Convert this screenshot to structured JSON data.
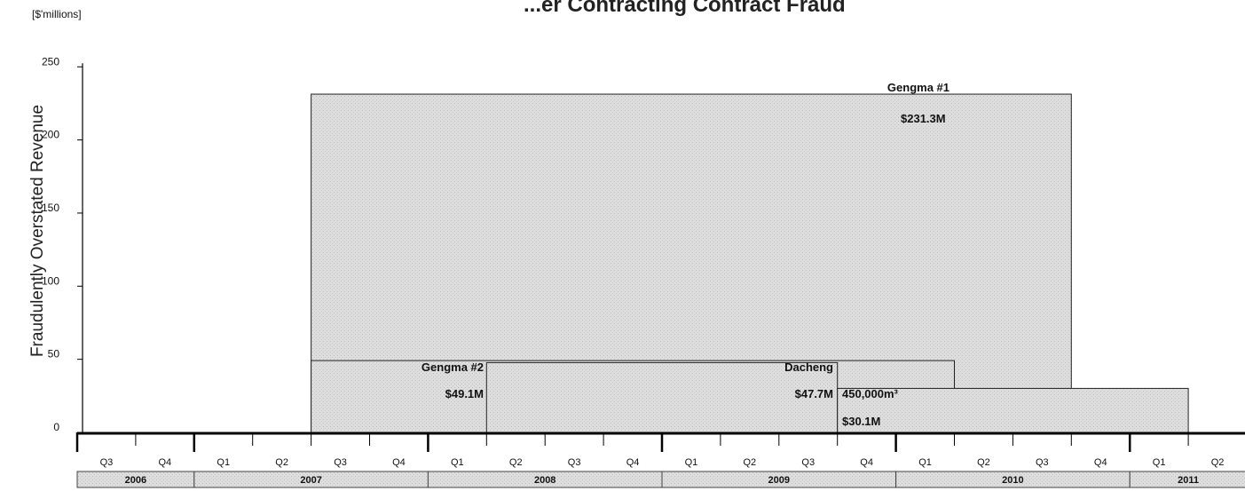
{
  "chart_data": {
    "type": "area",
    "title": "...er Contracting Contract Fraud",
    "unit_label": "[$'millions]",
    "ylabel": "Fraudulently Overstated Revenue",
    "ylim": [
      0,
      250
    ],
    "yticks": [
      0,
      50,
      100,
      150,
      200,
      250
    ],
    "quarters": [
      "Q3",
      "Q4",
      "Q1",
      "Q2",
      "Q3",
      "Q4",
      "Q1",
      "Q2",
      "Q3",
      "Q4",
      "Q1",
      "Q2",
      "Q3",
      "Q4",
      "Q1",
      "Q2",
      "Q3",
      "Q4",
      "Q1",
      "Q2"
    ],
    "years": [
      {
        "label": "2006",
        "quarters": 2
      },
      {
        "label": "2007",
        "quarters": 4
      },
      {
        "label": "2008",
        "quarters": 4
      },
      {
        "label": "2009",
        "quarters": 4
      },
      {
        "label": "2010",
        "quarters": 4
      },
      {
        "label": "2011",
        "quarters": 2
      }
    ],
    "series": [
      {
        "name": "Gengma #1",
        "value_label": "$231.3M",
        "value": 231.3,
        "start": "2007 Q3",
        "end": "2010 Q3"
      },
      {
        "name": "Gengma #2",
        "value_label": "$49.1M",
        "value": 49.1,
        "start": "2007 Q3",
        "end": "2010 Q1"
      },
      {
        "name": "Dacheng",
        "value_label": "$47.7M",
        "value": 47.7,
        "start": "2008 Q2",
        "end": "2009 Q3"
      },
      {
        "name": "450,000m³",
        "value_label": "$30.1M",
        "value": 30.1,
        "start": "2009 Q4",
        "end": "2011 Q1"
      }
    ]
  },
  "colors": {
    "box_fill": "#dddddd",
    "box_stroke": "#222222",
    "axis": "#000000",
    "year_fill": "#e4e4e4"
  }
}
